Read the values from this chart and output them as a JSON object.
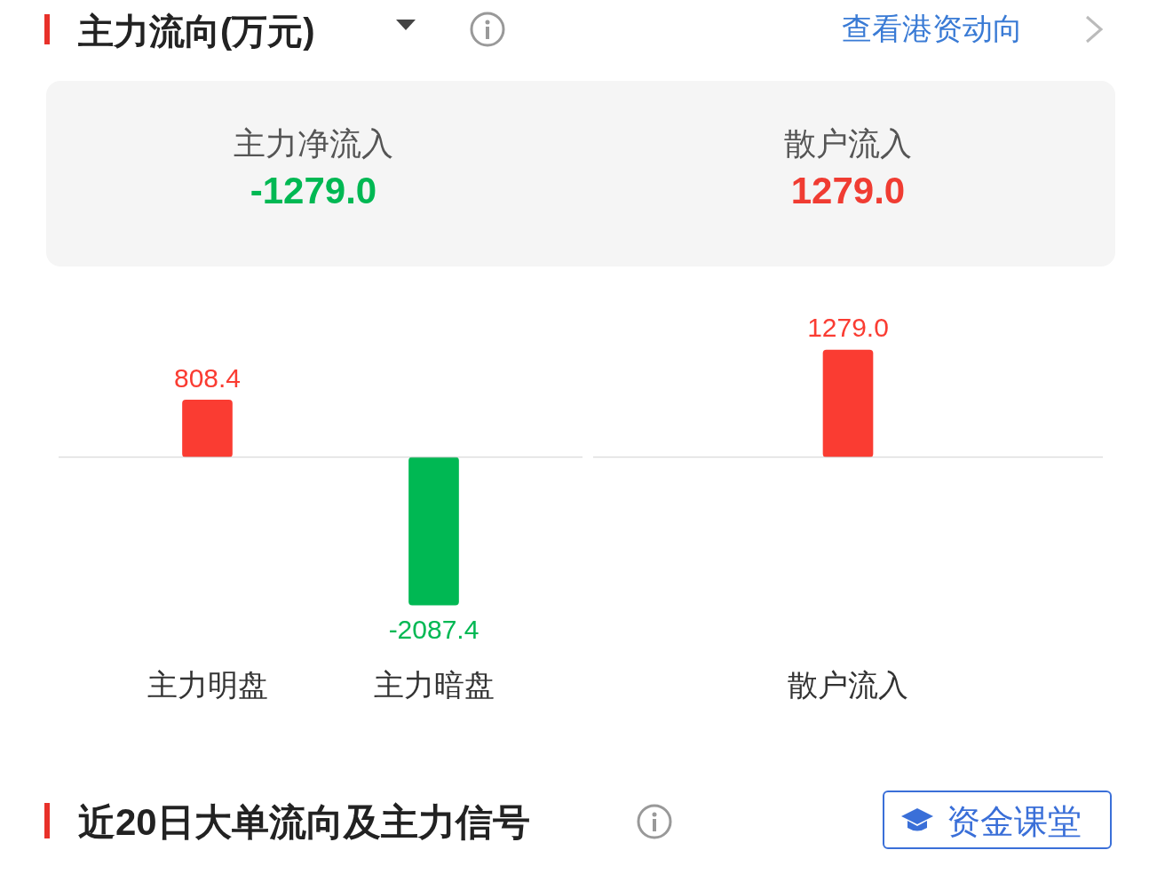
{
  "chart_data": [
    {
      "type": "other",
      "title": "主力流向(万元)",
      "annotations": [
        "查看港资动向",
        "主力净流入",
        "-1279.0",
        "散户流入",
        "1279.0"
      ]
    },
    {
      "type": "bar",
      "categories": [
        "主力明盘",
        "主力暗盘"
      ],
      "values": [
        808.4,
        -2087.4
      ],
      "value_labels": [
        "808.4",
        "-2087.4"
      ],
      "colors": [
        "#fa3c32",
        "#00b853"
      ]
    },
    {
      "type": "bar",
      "categories": [
        "散户流入"
      ],
      "values": [
        1279.0
      ],
      "value_labels": [
        "1279.0"
      ],
      "colors": [
        "#fa3c32"
      ]
    },
    {
      "type": "other",
      "title": "近20日大单流向及主力信号",
      "annotations": [
        "资金课堂"
      ]
    }
  ]
}
